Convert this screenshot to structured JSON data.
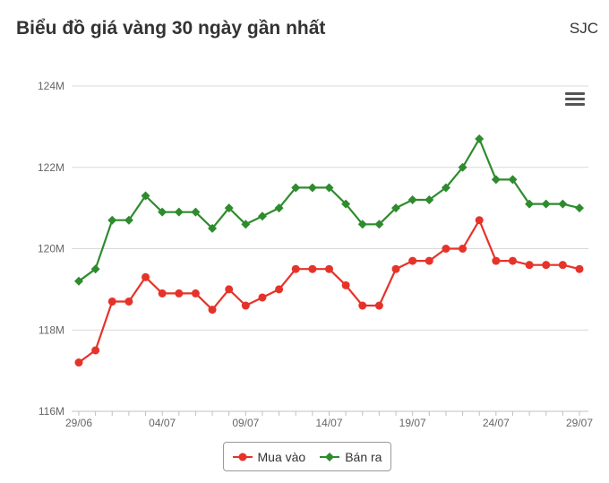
{
  "header": {
    "title": "Biểu đồ giá vàng 30 ngày gần nhất",
    "brand": "SJC"
  },
  "menu_icon": "hamburger-icon",
  "colors": {
    "buy": "#e63329",
    "sell": "#2e8b2e",
    "grid": "#d9d9d9",
    "axis_text": "#666666"
  },
  "chart_data": {
    "type": "line",
    "title": "Biểu đồ giá vàng 30 ngày gần nhất",
    "xlabel": "",
    "ylabel": "",
    "ylim": [
      116,
      124
    ],
    "ytick_values": [
      116,
      118,
      120,
      122,
      124
    ],
    "ytick_labels": [
      "116M",
      "118M",
      "120M",
      "122M",
      "124M"
    ],
    "x_count": 31,
    "xtick_indices": [
      0,
      5,
      10,
      15,
      20,
      25,
      30
    ],
    "xtick_labels": [
      "29/06",
      "04/07",
      "09/07",
      "14/07",
      "19/07",
      "24/07",
      "29/07"
    ],
    "grid": true,
    "legend_position": "bottom-center",
    "series": [
      {
        "name": "Mua vào",
        "color": "#e63329",
        "marker": "circle",
        "values": [
          117.2,
          117.5,
          118.7,
          118.7,
          119.3,
          118.9,
          118.9,
          118.9,
          118.5,
          119.0,
          118.6,
          118.8,
          119.0,
          119.5,
          119.5,
          119.5,
          119.1,
          118.6,
          118.6,
          119.5,
          119.7,
          119.7,
          120.0,
          120.0,
          120.7,
          119.7,
          119.7,
          119.6,
          119.6,
          119.6,
          119.5
        ]
      },
      {
        "name": "Bán ra",
        "color": "#2e8b2e",
        "marker": "diamond",
        "values": [
          119.2,
          119.5,
          120.7,
          120.7,
          121.3,
          120.9,
          120.9,
          120.9,
          120.5,
          121.0,
          120.6,
          120.8,
          121.0,
          121.5,
          121.5,
          121.5,
          121.1,
          120.6,
          120.6,
          121.0,
          121.2,
          121.2,
          121.5,
          122.0,
          122.7,
          121.7,
          121.7,
          121.1,
          121.1,
          121.1,
          121.0
        ]
      }
    ]
  },
  "legend": {
    "items": [
      "Mua vào",
      "Bán ra"
    ]
  }
}
